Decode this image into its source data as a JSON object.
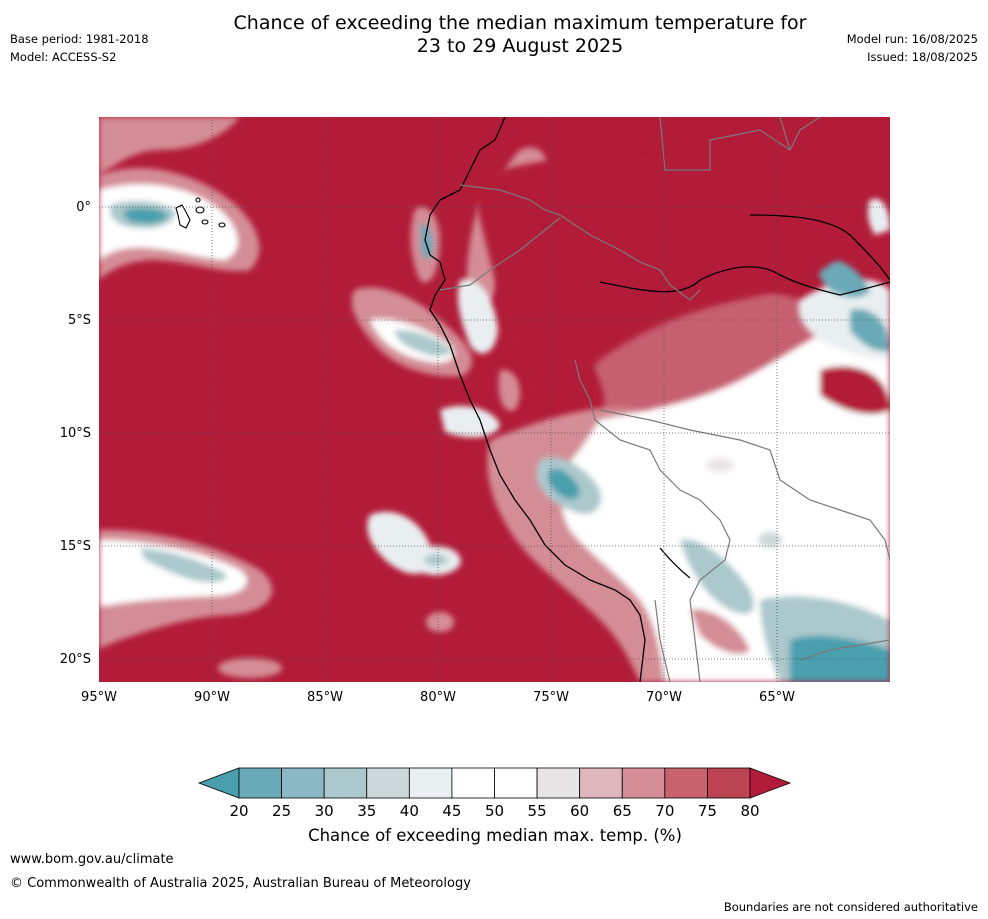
{
  "title_line1": "Chance of exceeding the median maximum temperature for",
  "title_line2": "23 to 29 August 2025",
  "meta_left": {
    "base_period": "Base period: 1981-2018",
    "model": "Model: ACCESS-S2"
  },
  "meta_right": {
    "model_run": "Model run: 16/08/2025",
    "issued": "Issued: 18/08/2025"
  },
  "map": {
    "lat_labels": [
      "0°",
      "5°S",
      "10°S",
      "15°S",
      "20°S"
    ],
    "lon_labels": [
      "95°W",
      "90°W",
      "85°W",
      "80°W",
      "75°W",
      "70°W",
      "65°W"
    ],
    "colors": {
      "ocean_high": "#b21c38",
      "coast": "#000000",
      "border": "#7a7a7a"
    }
  },
  "colorbar": {
    "ticks": [
      "20",
      "25",
      "30",
      "35",
      "40",
      "45",
      "50",
      "55",
      "60",
      "65",
      "70",
      "75",
      "80"
    ],
    "colors": [
      "#4a9fae",
      "#6aaab8",
      "#8bb8c4",
      "#abc8cc",
      "#cdd8da",
      "#e9eff1",
      "#ffffff",
      "#ffffff",
      "#e8e5e6",
      "#deb6bc",
      "#d48d96",
      "#c8636e",
      "#bd4452",
      "#b21c38"
    ],
    "label": "Chance of exceeding median max. temp. (%)"
  },
  "footer": {
    "url": "www.bom.gov.au/climate",
    "copyright": "© Commonwealth of Australia 2025, Australian Bureau of Meteorology",
    "note": "Boundaries are not considered authoritative"
  }
}
